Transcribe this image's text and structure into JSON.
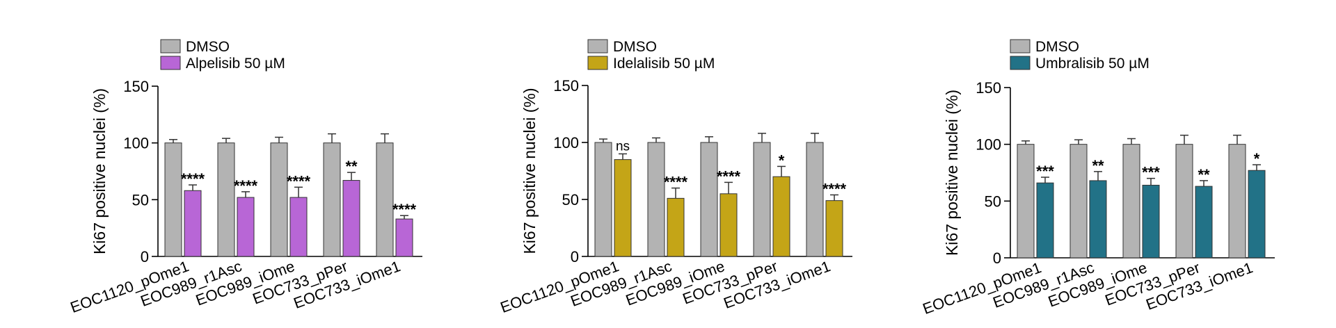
{
  "chart_data": [
    {
      "type": "bar",
      "ylabel": "Ki67 positive nuclei (%)",
      "ylim": [
        0,
        150
      ],
      "yticks": [
        0,
        50,
        100,
        150
      ],
      "categories": [
        "EOC1120_pOme1",
        "EOC989_r1Asc",
        "EOC989_iOme",
        "EOC733_pPer",
        "EOC733_iOme1"
      ],
      "legend_placement": "top-left",
      "series": [
        {
          "name": "DMSO",
          "color": "#b3b3b3",
          "values": [
            100,
            100,
            100,
            100,
            100
          ],
          "errors": [
            3,
            4,
            5,
            8,
            8
          ]
        },
        {
          "name": "Alpelisib 50 µM",
          "color": "#b866d6",
          "values": [
            58,
            52,
            52,
            67,
            33
          ],
          "errors": [
            5,
            5,
            9,
            7,
            3
          ]
        }
      ],
      "significance": [
        "****",
        "****",
        "****",
        "**",
        "****"
      ]
    },
    {
      "type": "bar",
      "ylabel": "Ki67 positive nuclei (%)",
      "ylim": [
        0,
        150
      ],
      "yticks": [
        0,
        50,
        100,
        150
      ],
      "categories": [
        "EOC1120_pOme1",
        "EOC989_r1Asc",
        "EOC989_iOme",
        "EOC733_pPer",
        "EOC733_iOme1"
      ],
      "legend_placement": "top-left",
      "series": [
        {
          "name": "DMSO",
          "color": "#b3b3b3",
          "values": [
            100,
            100,
            100,
            100,
            100
          ],
          "errors": [
            3,
            4,
            5,
            8,
            8
          ]
        },
        {
          "name": "Idelalisib 50 µM",
          "color": "#c4a517",
          "values": [
            85,
            51,
            55,
            70,
            49
          ],
          "errors": [
            5,
            9,
            10,
            9,
            5
          ]
        }
      ],
      "significance": [
        "ns",
        "****",
        "****",
        "*",
        "****"
      ]
    },
    {
      "type": "bar",
      "ylabel": "Ki67 positive nuclei (%)",
      "ylim": [
        0,
        150
      ],
      "yticks": [
        0,
        50,
        100,
        150
      ],
      "categories": [
        "EOC1120_pOme1",
        "EOC989_r1Asc",
        "EOC989_iOme",
        "EOC733_pPer",
        "EOC733_iOme1"
      ],
      "legend_placement": "top-left",
      "series": [
        {
          "name": "DMSO",
          "color": "#b3b3b3",
          "values": [
            100,
            100,
            100,
            100,
            100
          ],
          "errors": [
            3,
            4,
            5,
            8,
            8
          ]
        },
        {
          "name": "Umbralisib 50 µM",
          "color": "#227287",
          "values": [
            66,
            68,
            64,
            63,
            77
          ],
          "errors": [
            5,
            8,
            6,
            5,
            5
          ]
        }
      ],
      "significance": [
        "***",
        "**",
        "***",
        "**",
        "*"
      ]
    }
  ]
}
